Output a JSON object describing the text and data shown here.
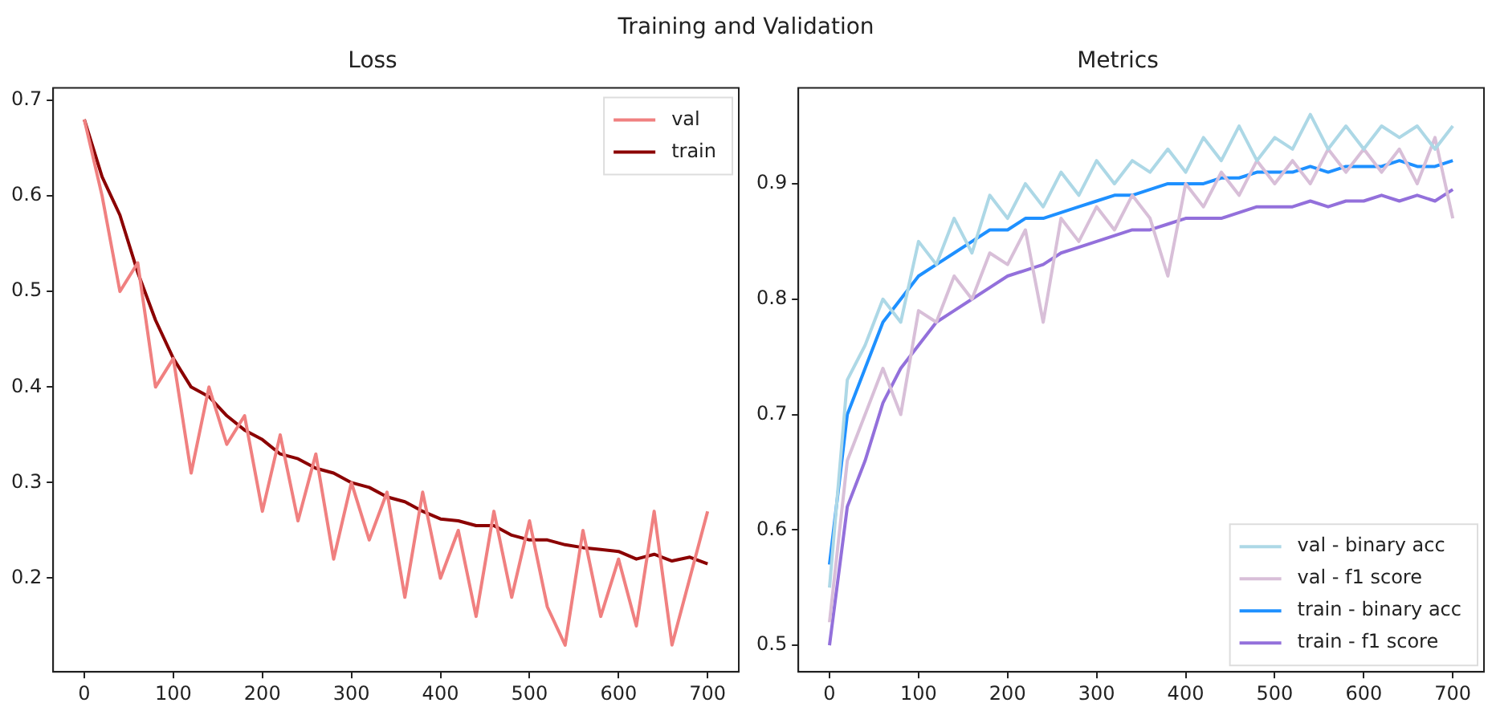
{
  "chart_data": [
    {
      "type": "line",
      "title": "Loss",
      "annotations": [
        "Training and Validation"
      ],
      "xlim": [
        -35,
        735
      ],
      "xticks": [
        0,
        100,
        200,
        300,
        400,
        500,
        600,
        700
      ],
      "ylim": [
        0.102,
        0.713
      ],
      "yticks": [
        0.2,
        0.3,
        0.4,
        0.5,
        0.6,
        0.7
      ],
      "grid": false,
      "legend": "top right",
      "line_style": "solid",
      "marker": "none",
      "x": [
        0,
        20,
        40,
        60,
        80,
        100,
        120,
        140,
        160,
        180,
        200,
        220,
        240,
        260,
        280,
        300,
        320,
        340,
        360,
        380,
        400,
        420,
        440,
        460,
        480,
        500,
        520,
        540,
        560,
        580,
        600,
        620,
        640,
        660,
        680,
        700
      ],
      "series": [
        {
          "name": "val",
          "color": "#f08080",
          "values": [
            0.68,
            0.6,
            0.5,
            0.53,
            0.4,
            0.43,
            0.31,
            0.4,
            0.34,
            0.37,
            0.27,
            0.35,
            0.26,
            0.33,
            0.22,
            0.3,
            0.24,
            0.29,
            0.18,
            0.29,
            0.2,
            0.25,
            0.16,
            0.27,
            0.18,
            0.26,
            0.17,
            0.13,
            0.25,
            0.16,
            0.22,
            0.15,
            0.27,
            0.13,
            0.2,
            0.27
          ]
        },
        {
          "name": "train",
          "color": "#8b0000",
          "values": [
            0.68,
            0.62,
            0.58,
            0.52,
            0.47,
            0.43,
            0.4,
            0.39,
            0.37,
            0.355,
            0.345,
            0.33,
            0.325,
            0.315,
            0.31,
            0.3,
            0.295,
            0.285,
            0.28,
            0.27,
            0.262,
            0.26,
            0.255,
            0.255,
            0.245,
            0.24,
            0.24,
            0.235,
            0.232,
            0.23,
            0.228,
            0.22,
            0.225,
            0.218,
            0.222,
            0.215
          ]
        }
      ]
    },
    {
      "type": "line",
      "title": "Metrics",
      "xlim": [
        -35,
        735
      ],
      "xticks": [
        0,
        100,
        200,
        300,
        400,
        500,
        600,
        700
      ],
      "ylim": [
        0.477,
        0.983
      ],
      "yticks": [
        0.5,
        0.6,
        0.7,
        0.8,
        0.9
      ],
      "grid": false,
      "legend": "bottom right",
      "line_style": "solid",
      "marker": "none",
      "x": [
        0,
        20,
        40,
        60,
        80,
        100,
        120,
        140,
        160,
        180,
        200,
        220,
        240,
        260,
        280,
        300,
        320,
        340,
        360,
        380,
        400,
        420,
        440,
        460,
        480,
        500,
        520,
        540,
        560,
        580,
        600,
        620,
        640,
        660,
        680,
        700
      ],
      "series": [
        {
          "name": "val - binary acc",
          "color": "#add8e6",
          "values": [
            0.55,
            0.73,
            0.76,
            0.8,
            0.78,
            0.85,
            0.83,
            0.87,
            0.84,
            0.89,
            0.87,
            0.9,
            0.88,
            0.91,
            0.89,
            0.92,
            0.9,
            0.92,
            0.91,
            0.93,
            0.91,
            0.94,
            0.92,
            0.95,
            0.92,
            0.94,
            0.93,
            0.96,
            0.93,
            0.95,
            0.93,
            0.95,
            0.94,
            0.95,
            0.93,
            0.95
          ]
        },
        {
          "name": "val - f1 score",
          "color": "#d8bfd8",
          "values": [
            0.52,
            0.66,
            0.7,
            0.74,
            0.7,
            0.79,
            0.78,
            0.82,
            0.8,
            0.84,
            0.83,
            0.86,
            0.78,
            0.87,
            0.85,
            0.88,
            0.86,
            0.89,
            0.87,
            0.82,
            0.9,
            0.88,
            0.91,
            0.89,
            0.92,
            0.9,
            0.92,
            0.9,
            0.93,
            0.91,
            0.93,
            0.91,
            0.93,
            0.9,
            0.94,
            0.87
          ]
        },
        {
          "name": "train - binary acc",
          "color": "#1e90ff",
          "values": [
            0.57,
            0.7,
            0.74,
            0.78,
            0.8,
            0.82,
            0.83,
            0.84,
            0.85,
            0.86,
            0.86,
            0.87,
            0.87,
            0.875,
            0.88,
            0.885,
            0.89,
            0.89,
            0.895,
            0.9,
            0.9,
            0.9,
            0.905,
            0.905,
            0.91,
            0.91,
            0.91,
            0.915,
            0.91,
            0.915,
            0.915,
            0.915,
            0.92,
            0.915,
            0.915,
            0.92
          ]
        },
        {
          "name": "train - f1 score",
          "color": "#9370db",
          "values": [
            0.5,
            0.62,
            0.66,
            0.71,
            0.74,
            0.76,
            0.78,
            0.79,
            0.8,
            0.81,
            0.82,
            0.825,
            0.83,
            0.84,
            0.845,
            0.85,
            0.855,
            0.86,
            0.86,
            0.865,
            0.87,
            0.87,
            0.87,
            0.875,
            0.88,
            0.88,
            0.88,
            0.885,
            0.88,
            0.885,
            0.885,
            0.89,
            0.885,
            0.89,
            0.885,
            0.895
          ]
        }
      ]
    }
  ]
}
